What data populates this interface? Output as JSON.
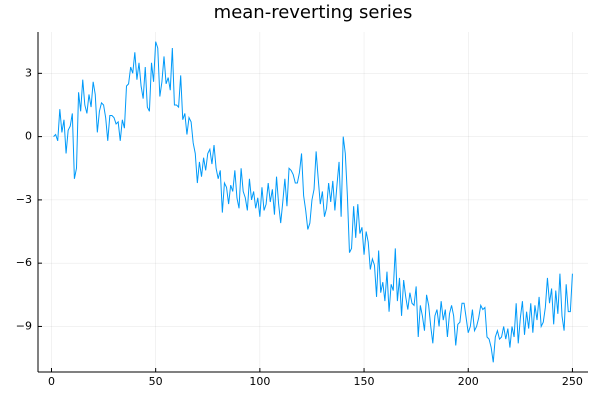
{
  "chart_data": {
    "type": "line",
    "title": "mean-reverting series",
    "x": [
      1,
      2,
      3,
      4,
      5,
      6,
      7,
      8,
      9,
      10,
      11,
      12,
      13,
      14,
      15,
      16,
      17,
      18,
      19,
      20,
      21,
      22,
      23,
      24,
      25,
      26,
      27,
      28,
      29,
      30,
      31,
      32,
      33,
      34,
      35,
      36,
      37,
      38,
      39,
      40,
      41,
      42,
      43,
      44,
      45,
      46,
      47,
      48,
      49,
      50,
      51,
      52,
      53,
      54,
      55,
      56,
      57,
      58,
      59,
      60,
      61,
      62,
      63,
      64,
      65,
      66,
      67,
      68,
      69,
      70,
      71,
      72,
      73,
      74,
      75,
      76,
      77,
      78,
      79,
      80,
      81,
      82,
      83,
      84,
      85,
      86,
      87,
      88,
      89,
      90,
      91,
      92,
      93,
      94,
      95,
      96,
      97,
      98,
      99,
      100,
      101,
      102,
      103,
      104,
      105,
      106,
      107,
      108,
      109,
      110,
      111,
      112,
      113,
      114,
      115,
      116,
      117,
      118,
      119,
      120,
      121,
      122,
      123,
      124,
      125,
      126,
      127,
      128,
      129,
      130,
      131,
      132,
      133,
      134,
      135,
      136,
      137,
      138,
      139,
      140,
      141,
      142,
      143,
      144,
      145,
      146,
      147,
      148,
      149,
      150,
      151,
      152,
      153,
      154,
      155,
      156,
      157,
      158,
      159,
      160,
      161,
      162,
      163,
      164,
      165,
      166,
      167,
      168,
      169,
      170,
      171,
      172,
      173,
      174,
      175,
      176,
      177,
      178,
      179,
      180,
      181,
      182,
      183,
      184,
      185,
      186,
      187,
      188,
      189,
      190,
      191,
      192,
      193,
      194,
      195,
      196,
      197,
      198,
      199,
      200,
      201,
      202,
      203,
      204,
      205,
      206,
      207,
      208,
      209,
      210,
      211,
      212,
      213,
      214,
      215,
      216,
      217,
      218,
      219,
      220,
      221,
      222,
      223,
      224,
      225,
      226,
      227,
      228,
      229,
      230,
      231,
      232,
      233,
      234,
      235,
      236,
      237,
      238,
      239,
      240,
      241,
      242,
      243,
      244,
      245,
      246,
      247,
      248,
      249,
      250
    ],
    "series": [
      {
        "color": "#009af9",
        "values": [
          0,
          0.1,
          -0.2,
          1.3,
          0.2,
          0.8,
          -0.8,
          0.3,
          0.5,
          1.1,
          -2.0,
          -1.5,
          2.1,
          1.2,
          2.7,
          1.5,
          1.1,
          2.0,
          1.4,
          2.6,
          2.0,
          0.2,
          1.2,
          1.6,
          1.5,
          0.9,
          -0.2,
          1.0,
          1.0,
          0.9,
          0.6,
          0.7,
          -0.2,
          0.8,
          0.4,
          2.4,
          2.5,
          3.3,
          3.0,
          4.0,
          2.7,
          3.5,
          2.4,
          1.8,
          3.3,
          1.4,
          1.2,
          3.5,
          2.6,
          4.5,
          4.2,
          1.9,
          2.6,
          3.8,
          2.5,
          2.8,
          2.2,
          4.2,
          1.5,
          1.5,
          1.4,
          2.9,
          0.8,
          1.1,
          0.1,
          0.9,
          0.7,
          -0.3,
          -0.8,
          -2.2,
          -1.2,
          -1.9,
          -1.0,
          -1.6,
          -0.8,
          -0.6,
          -1.3,
          -0.4,
          -1.5,
          -2.0,
          -1.6,
          -3.6,
          -2.2,
          -2.4,
          -3.2,
          -2.3,
          -2.6,
          -1.6,
          -2.9,
          -3.4,
          -1.5,
          -2.6,
          -2.9,
          -3.5,
          -2.0,
          -3.0,
          -2.6,
          -3.4,
          -2.9,
          -3.8,
          -2.4,
          -3.5,
          -3.2,
          -2.2,
          -3.1,
          -2.5,
          -3.7,
          -1.9,
          -3.2,
          -4.1,
          -3.1,
          -2.0,
          -3.3,
          -1.5,
          -1.6,
          -1.8,
          -2.2,
          -2.2,
          -1.7,
          -0.8,
          -2.8,
          -3.5,
          -4.4,
          -4.1,
          -3.0,
          -2.5,
          -0.7,
          -2.0,
          -3.2,
          -2.6,
          -3.8,
          -3.4,
          -2.2,
          -3.1,
          -2.1,
          -3.5,
          -2.3,
          -1.2,
          -3.8,
          0.0,
          -0.8,
          -2.8,
          -5.5,
          -5.3,
          -3.3,
          -4.8,
          -3.2,
          -4.6,
          -4.3,
          -5.6,
          -4.5,
          -5.0,
          -6.3,
          -5.8,
          -6.1,
          -7.6,
          -5.4,
          -7.4,
          -6.9,
          -7.8,
          -6.4,
          -8.3,
          -7.0,
          -7.3,
          -5.3,
          -7.8,
          -6.7,
          -8.5,
          -6.8,
          -7.6,
          -8.2,
          -7.4,
          -7.9,
          -8.0,
          -7.1,
          -9.5,
          -8.0,
          -8.5,
          -9.2,
          -7.5,
          -8.0,
          -9.0,
          -9.8,
          -8.5,
          -8.2,
          -9.0,
          -7.8,
          -8.7,
          -8.2,
          -9.5,
          -8.4,
          -8.0,
          -8.5,
          -9.9,
          -8.9,
          -8.8,
          -7.9,
          -7.9,
          -8.6,
          -9.3,
          -9.0,
          -8.2,
          -9.2,
          -9.0,
          -8.6,
          -8.0,
          -8.2,
          -8.1,
          -9.5,
          -9.6,
          -10.0,
          -10.7,
          -9.5,
          -9.2,
          -9.6,
          -9.5,
          -9.0,
          -9.6,
          -9.1,
          -10.0,
          -9.0,
          -9.5,
          -7.9,
          -9.8,
          -8.6,
          -7.8,
          -9.4,
          -8.3,
          -9.1,
          -7.9,
          -9.3,
          -8.0,
          -8.7,
          -7.6,
          -9.0,
          -8.8,
          -8.1,
          -6.7,
          -7.9,
          -7.2,
          -8.9,
          -7.3,
          -8.4,
          -6.5,
          -8.5,
          -9.2,
          -7.0,
          -8.3,
          -8.3,
          -6.5
        ]
      }
    ],
    "xlim": [
      -6.47,
      257.47
    ],
    "xticks": [
      0,
      50,
      100,
      150,
      200,
      250
    ],
    "ylim": [
      -11.16,
      4.96
    ],
    "yticks": [
      3,
      0,
      {
        "value": -3,
        "label": "−3"
      },
      {
        "value": -6,
        "label": "−6"
      },
      {
        "value": -9,
        "label": "−9"
      }
    ],
    "grid": true
  }
}
